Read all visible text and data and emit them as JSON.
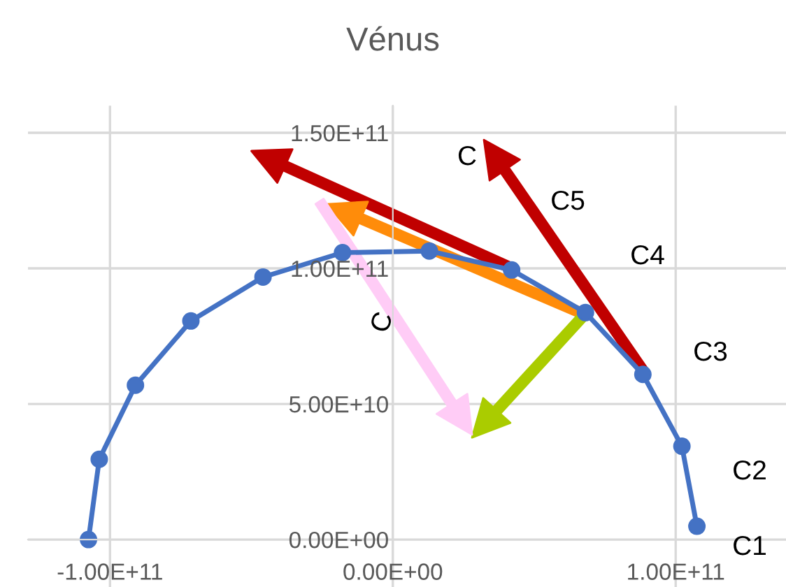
{
  "chart_data": {
    "type": "line",
    "title": "Vénus",
    "x": [
      -107600000000.0,
      -103800000000.0,
      -91000000000.0,
      -71400000000.0,
      -45900000000.0,
      -17800000000.0,
      12900000000.0,
      42000000000.0,
      68100000000.0,
      88400000000.0,
      102200000000.0,
      107500000000.0
    ],
    "series": [
      {
        "color": "#4472c4",
        "values": [
          0,
          29600000000.0,
          56900000000.0,
          80600000000.0,
          96800000000.0,
          105800000000.0,
          106400000000.0,
          99400000000.0,
          83700000000.0,
          60900000000.0,
          34400000000.0,
          4900000000.0
        ]
      }
    ],
    "xlim": [
      -129000000000.0,
      139000000000.0
    ],
    "ylim": [
      -17500000000.0,
      160000000000.0
    ],
    "xticks": [
      {
        "value": -100000000000.0,
        "label": "-1.00E+11"
      },
      {
        "value": 0,
        "label": "0.00E+00"
      },
      {
        "value": 100000000000.0,
        "label": "1.00E+11"
      }
    ],
    "yticks": [
      {
        "value": 0,
        "label": "0.00E+00"
      },
      {
        "value": 50000000000.0,
        "label": "5.00E+10"
      },
      {
        "value": 100000000000.0,
        "label": "1.00E+11"
      },
      {
        "value": 150000000000.0,
        "label": "1.50E+11"
      }
    ],
    "grid": true,
    "marker": "circle",
    "line_style": "solid",
    "annotations": [
      "C1",
      "C2",
      "C3",
      "C4",
      "C5",
      "C",
      "C"
    ]
  }
}
